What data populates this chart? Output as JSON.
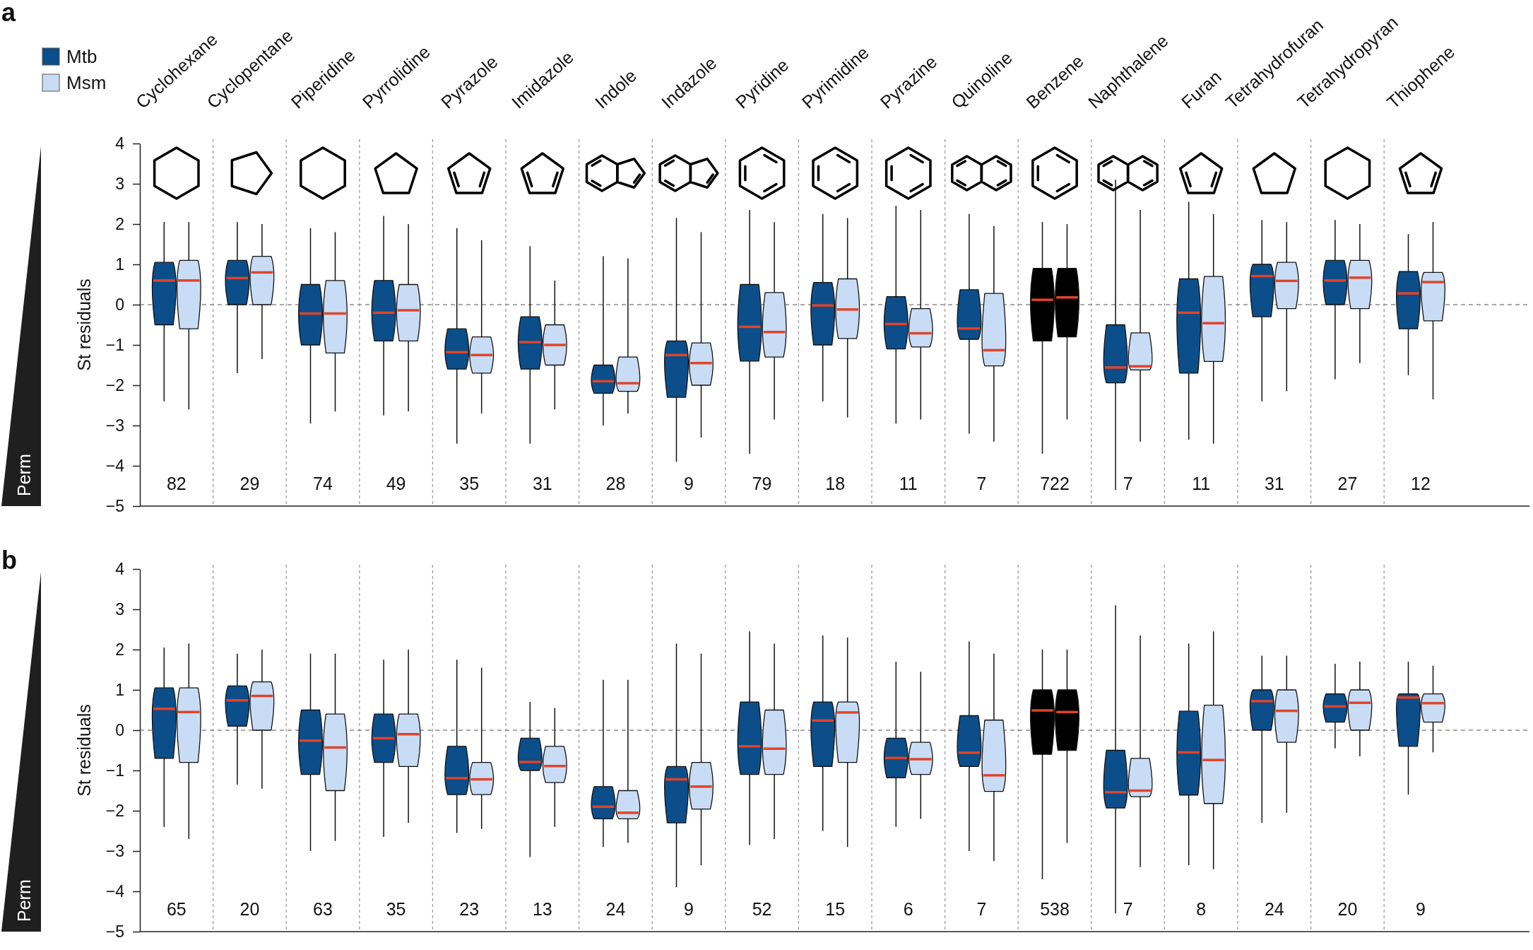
{
  "chart_data": [
    {
      "type": "box",
      "title": "a",
      "ylabel": "St residuals",
      "categories": [
        "Cyclohexane",
        "Cyclopentane",
        "Piperidine",
        "Pyrrolidine",
        "Pyrazole",
        "Imidazole",
        "Indole",
        "Indazole",
        "Pyridine",
        "Pyrimidine",
        "Pyrazine",
        "Quinoline",
        "Benzene",
        "Naphthalene",
        "Furan",
        "Tetrahydrofuran",
        "Tetrahydropyran",
        "Thiophene"
      ],
      "series": [
        {
          "name": "Mtb",
          "color": "#0c4e8a",
          "colors": [
            "#0c4e8a",
            "#0c4e8a",
            "#0c4e8a",
            "#0c4e8a",
            "#0c4e8a",
            "#0c4e8a",
            "#0c4e8a",
            "#0c4e8a",
            "#0c4e8a",
            "#0c4e8a",
            "#0c4e8a",
            "#0c4e8a",
            "#000000",
            "#0c4e8a",
            "#0c4e8a",
            "#0c4e8a",
            "#0c4e8a",
            "#0c4e8a"
          ],
          "boxes": [
            {
              "low": -2.4,
              "q1": -0.5,
              "median": 0.6,
              "q3": 1.05,
              "high": 2.05
            },
            {
              "low": -1.7,
              "q1": 0.0,
              "median": 0.66,
              "q3": 1.1,
              "high": 2.05
            },
            {
              "low": -2.95,
              "q1": -1.0,
              "median": -0.22,
              "q3": 0.5,
              "high": 1.9
            },
            {
              "low": -2.75,
              "q1": -0.9,
              "median": -0.2,
              "q3": 0.6,
              "high": 2.2
            },
            {
              "low": -3.45,
              "q1": -1.6,
              "median": -1.18,
              "q3": -0.6,
              "high": 1.9
            },
            {
              "low": -3.45,
              "q1": -1.6,
              "median": -0.93,
              "q3": -0.3,
              "high": 1.45
            },
            {
              "low": -3.0,
              "q1": -2.2,
              "median": -1.9,
              "q3": -1.5,
              "high": 1.2
            },
            {
              "low": -3.9,
              "q1": -2.3,
              "median": -1.25,
              "q3": -0.9,
              "high": 2.15
            },
            {
              "low": -3.7,
              "q1": -1.4,
              "median": -0.55,
              "q3": 0.5,
              "high": 2.35
            },
            {
              "low": -2.4,
              "q1": -1.0,
              "median": -0.02,
              "q3": 0.55,
              "high": 2.25
            },
            {
              "low": -2.95,
              "q1": -1.1,
              "median": -0.48,
              "q3": 0.2,
              "high": 2.45
            },
            {
              "low": -3.2,
              "q1": -0.86,
              "median": -0.59,
              "q3": 0.37,
              "high": 2.25
            },
            {
              "low": -3.7,
              "q1": -0.9,
              "median": 0.12,
              "q3": 0.9,
              "high": 2.05
            },
            {
              "low": -4.6,
              "q1": -1.94,
              "median": -1.56,
              "q3": -0.5,
              "high": 3.1
            },
            {
              "low": -3.35,
              "q1": -1.7,
              "median": -0.2,
              "q3": 0.64,
              "high": 2.55
            },
            {
              "low": -2.4,
              "q1": -0.3,
              "median": 0.71,
              "q3": 1.0,
              "high": 2.1
            },
            {
              "low": -1.85,
              "q1": 0.0,
              "median": 0.6,
              "q3": 1.1,
              "high": 2.1
            },
            {
              "low": -1.75,
              "q1": -0.6,
              "median": 0.28,
              "q3": 0.82,
              "high": 1.75
            }
          ]
        },
        {
          "name": "Msm",
          "color": "#c8dcf6",
          "colors": [
            "#c8dcf6",
            "#c8dcf6",
            "#c8dcf6",
            "#c8dcf6",
            "#c8dcf6",
            "#c8dcf6",
            "#c8dcf6",
            "#c8dcf6",
            "#c8dcf6",
            "#c8dcf6",
            "#c8dcf6",
            "#c8dcf6",
            "#000000",
            "#c8dcf6",
            "#c8dcf6",
            "#c8dcf6",
            "#c8dcf6",
            "#c8dcf6"
          ],
          "boxes": [
            {
              "low": -2.6,
              "q1": -0.6,
              "median": 0.6,
              "q3": 1.1,
              "high": 2.05
            },
            {
              "low": -1.35,
              "q1": 0.0,
              "median": 0.8,
              "q3": 1.2,
              "high": 2.0
            },
            {
              "low": -2.65,
              "q1": -1.2,
              "median": -0.22,
              "q3": 0.6,
              "high": 1.8
            },
            {
              "low": -2.65,
              "q1": -0.9,
              "median": -0.14,
              "q3": 0.5,
              "high": 2.0
            },
            {
              "low": -2.7,
              "q1": -1.7,
              "median": -1.25,
              "q3": -0.8,
              "high": 1.6
            },
            {
              "low": -2.6,
              "q1": -1.5,
              "median": -1.0,
              "q3": -0.5,
              "high": 0.6
            },
            {
              "low": -2.7,
              "q1": -2.15,
              "median": -1.95,
              "q3": -1.3,
              "high": 1.15
            },
            {
              "low": -3.3,
              "q1": -2.0,
              "median": -1.45,
              "q3": -0.95,
              "high": 1.8
            },
            {
              "low": -2.85,
              "q1": -1.3,
              "median": -0.68,
              "q3": 0.3,
              "high": 2.05
            },
            {
              "low": -2.8,
              "q1": -0.84,
              "median": -0.12,
              "q3": 0.64,
              "high": 2.15
            },
            {
              "low": -2.85,
              "q1": -1.05,
              "median": -0.71,
              "q3": -0.1,
              "high": 2.35
            },
            {
              "low": -3.4,
              "q1": -1.52,
              "median": -1.13,
              "q3": 0.28,
              "high": 1.95
            },
            {
              "low": -2.85,
              "q1": -0.8,
              "median": 0.18,
              "q3": 0.9,
              "high": 2.0
            },
            {
              "low": -3.4,
              "q1": -1.62,
              "median": -1.53,
              "q3": -0.7,
              "high": 2.35
            },
            {
              "low": -3.45,
              "q1": -1.41,
              "median": -0.46,
              "q3": 0.7,
              "high": 2.25
            },
            {
              "low": -2.15,
              "q1": -0.1,
              "median": 0.59,
              "q3": 1.05,
              "high": 2.05
            },
            {
              "low": -1.45,
              "q1": -0.1,
              "median": 0.67,
              "q3": 1.1,
              "high": 2.0
            },
            {
              "low": -2.35,
              "q1": -0.4,
              "median": 0.56,
              "q3": 0.8,
              "high": 2.05
            }
          ]
        }
      ],
      "ylim": [
        -5,
        4
      ],
      "yticks": [
        -5,
        -4,
        -3,
        -2,
        -1,
        0,
        1,
        2,
        3,
        4
      ],
      "grid": "x",
      "legend": "top left",
      "ref_lines": [
        {
          "axis": "y",
          "value": 0,
          "color": "#8c8c8c",
          "line_style": "dashed"
        }
      ],
      "annotations": [
        "Perm",
        "82",
        "29",
        "74",
        "49",
        "35",
        "31",
        "28",
        "9",
        "79",
        "18",
        "11",
        "7",
        "722",
        "7",
        "11",
        "31",
        "27",
        "12"
      ]
    },
    {
      "type": "box",
      "title": "b",
      "ylabel": "St residuals",
      "categories": [
        null,
        null,
        null,
        null,
        null,
        null,
        null,
        null,
        null,
        null,
        null,
        null,
        null,
        null,
        null,
        null,
        null,
        null
      ],
      "series": [
        {
          "colors": [
            "#0c4e8a",
            "#0c4e8a",
            "#0c4e8a",
            "#0c4e8a",
            "#0c4e8a",
            "#0c4e8a",
            "#0c4e8a",
            "#0c4e8a",
            "#0c4e8a",
            "#0c4e8a",
            "#0c4e8a",
            "#0c4e8a",
            "#000000",
            "#0c4e8a",
            "#0c4e8a",
            "#0c4e8a",
            "#0c4e8a",
            "#0c4e8a"
          ],
          "boxes": [
            {
              "low": -2.4,
              "q1": -0.7,
              "median": 0.53,
              "q3": 1.05,
              "high": 2.05
            },
            {
              "low": -1.35,
              "q1": 0.1,
              "median": 0.74,
              "q3": 1.1,
              "high": 1.9
            },
            {
              "low": -3.0,
              "q1": -1.1,
              "median": -0.26,
              "q3": 0.5,
              "high": 1.9
            },
            {
              "low": -2.65,
              "q1": -0.8,
              "median": -0.2,
              "q3": 0.4,
              "high": 1.75
            },
            {
              "low": -2.55,
              "q1": -1.6,
              "median": -1.19,
              "q3": -0.4,
              "high": 1.75
            },
            {
              "low": -3.15,
              "q1": -1.0,
              "median": -0.79,
              "q3": -0.2,
              "high": 0.7
            },
            {
              "low": -2.9,
              "q1": -2.2,
              "median": -1.9,
              "q3": -1.4,
              "high": 1.25
            },
            {
              "low": -3.9,
              "q1": -2.3,
              "median": -1.22,
              "q3": -0.9,
              "high": 2.15
            },
            {
              "low": -2.85,
              "q1": -1.1,
              "median": -0.4,
              "q3": 0.7,
              "high": 2.45
            },
            {
              "low": -2.5,
              "q1": -0.9,
              "median": 0.24,
              "q3": 0.7,
              "high": 2.35
            },
            {
              "low": -2.4,
              "q1": -1.18,
              "median": -0.69,
              "q3": -0.2,
              "high": 1.7
            },
            {
              "low": -3.0,
              "q1": -0.9,
              "median": -0.56,
              "q3": 0.36,
              "high": 2.2
            },
            {
              "low": -3.7,
              "q1": -0.6,
              "median": 0.49,
              "q3": 1.0,
              "high": 2.0
            },
            {
              "low": -4.55,
              "q1": -1.93,
              "median": -1.54,
              "q3": -0.5,
              "high": 3.1
            },
            {
              "low": -3.35,
              "q1": -1.61,
              "median": -0.55,
              "q3": 0.47,
              "high": 2.15
            },
            {
              "low": -2.3,
              "q1": 0.0,
              "median": 0.72,
              "q3": 1.0,
              "high": 1.85
            },
            {
              "low": -0.45,
              "q1": 0.2,
              "median": 0.59,
              "q3": 0.9,
              "high": 1.65
            },
            {
              "low": -1.6,
              "q1": -0.4,
              "median": 0.81,
              "q3": 0.9,
              "high": 1.7
            }
          ]
        },
        {
          "colors": [
            "#c8dcf6",
            "#c8dcf6",
            "#c8dcf6",
            "#c8dcf6",
            "#c8dcf6",
            "#c8dcf6",
            "#c8dcf6",
            "#c8dcf6",
            "#c8dcf6",
            "#c8dcf6",
            "#c8dcf6",
            "#c8dcf6",
            "#000000",
            "#c8dcf6",
            "#c8dcf6",
            "#c8dcf6",
            "#c8dcf6",
            "#c8dcf6"
          ],
          "boxes": [
            {
              "low": -2.7,
              "q1": -0.8,
              "median": 0.45,
              "q3": 1.05,
              "high": 2.15
            },
            {
              "low": -1.45,
              "q1": 0.0,
              "median": 0.85,
              "q3": 1.2,
              "high": 2.0
            },
            {
              "low": -2.75,
              "q1": -1.5,
              "median": -0.43,
              "q3": 0.4,
              "high": 1.9
            },
            {
              "low": -2.3,
              "q1": -0.9,
              "median": -0.1,
              "q3": 0.4,
              "high": 2.0
            },
            {
              "low": -2.45,
              "q1": -1.6,
              "median": -1.22,
              "q3": -0.8,
              "high": 1.55
            },
            {
              "low": -2.4,
              "q1": -1.3,
              "median": -0.89,
              "q3": -0.4,
              "high": 0.55
            },
            {
              "low": -2.8,
              "q1": -2.2,
              "median": -2.05,
              "q3": -1.5,
              "high": 1.25
            },
            {
              "low": -3.35,
              "q1": -1.96,
              "median": -1.4,
              "q3": -0.8,
              "high": 1.9
            },
            {
              "low": -2.7,
              "q1": -1.1,
              "median": -0.46,
              "q3": 0.5,
              "high": 2.15
            },
            {
              "low": -2.9,
              "q1": -0.8,
              "median": 0.44,
              "q3": 0.7,
              "high": 2.3
            },
            {
              "low": -2.2,
              "q1": -1.1,
              "median": -0.72,
              "q3": -0.3,
              "high": 1.45
            },
            {
              "low": -3.25,
              "q1": -1.52,
              "median": -1.12,
              "q3": 0.25,
              "high": 1.9
            },
            {
              "low": -2.8,
              "q1": -0.5,
              "median": 0.45,
              "q3": 1.0,
              "high": 2.0
            },
            {
              "low": -3.4,
              "q1": -1.65,
              "median": -1.5,
              "q3": -0.7,
              "high": 2.35
            },
            {
              "low": -3.45,
              "q1": -1.82,
              "median": -0.74,
              "q3": 0.62,
              "high": 2.45
            },
            {
              "low": -2.05,
              "q1": -0.3,
              "median": 0.48,
              "q3": 1.0,
              "high": 1.85
            },
            {
              "low": -0.65,
              "q1": 0.0,
              "median": 0.68,
              "q3": 1.0,
              "high": 1.7
            },
            {
              "low": -0.55,
              "q1": 0.2,
              "median": 0.67,
              "q3": 0.9,
              "high": 1.6
            }
          ]
        }
      ],
      "ylim": [
        -5,
        4
      ],
      "yticks": [
        -5,
        -4,
        -3,
        -2,
        -1,
        0,
        1,
        2,
        3,
        4
      ],
      "grid": "x",
      "tick_labels": "y",
      "ref_lines": [
        {
          "axis": "y",
          "value": 0,
          "color": "#8c8c8c",
          "line_style": "dashed"
        }
      ],
      "annotations": [
        "Perm",
        "65",
        "20",
        "63",
        "35",
        "23",
        "13",
        "24",
        "9",
        "52",
        "15",
        "6",
        "7",
        "538",
        "7",
        "8",
        "24",
        "20",
        "9"
      ]
    }
  ]
}
